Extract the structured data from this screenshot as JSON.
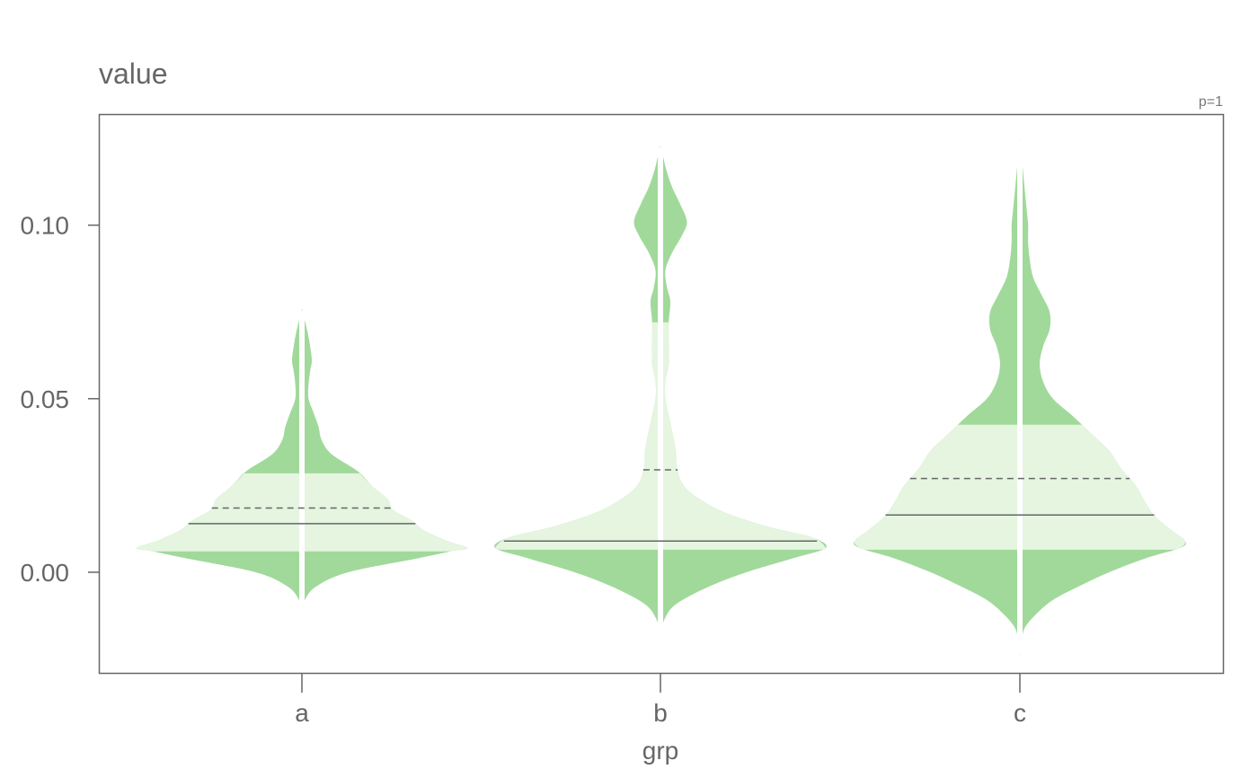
{
  "chart_data": {
    "type": "violin",
    "title": "",
    "ylabel": "value",
    "xlabel": "grp",
    "annotation": "p=1",
    "ylim": [
      -0.029,
      0.132
    ],
    "yticks": [
      0.0,
      0.05,
      0.1
    ],
    "ytick_labels": [
      "0.00",
      "0.05",
      "0.10"
    ],
    "categories": [
      "a",
      "b",
      "c"
    ],
    "grid": false,
    "colors": {
      "outer": "#a1d99b",
      "inner": "#e5f5e0",
      "spine": "#ffffff",
      "median": "#666666",
      "frame": "#666666"
    },
    "groups": [
      {
        "name": "a",
        "q1": 0.006,
        "q3": 0.0285,
        "median": 0.014,
        "mean": 0.0185,
        "min": -0.016,
        "max": 0.076,
        "density": [
          [
            -0.016,
            0.0
          ],
          [
            -0.012,
            0.004
          ],
          [
            -0.008,
            0.018
          ],
          [
            -0.004,
            0.09
          ],
          [
            0.0,
            0.28
          ],
          [
            0.004,
            0.7
          ],
          [
            0.006,
            0.9
          ],
          [
            0.007,
            1.0
          ],
          [
            0.009,
            0.88
          ],
          [
            0.012,
            0.74
          ],
          [
            0.015,
            0.66
          ],
          [
            0.018,
            0.55
          ],
          [
            0.021,
            0.52
          ],
          [
            0.025,
            0.42
          ],
          [
            0.029,
            0.34
          ],
          [
            0.034,
            0.18
          ],
          [
            0.038,
            0.12
          ],
          [
            0.042,
            0.1
          ],
          [
            0.046,
            0.07
          ],
          [
            0.05,
            0.04
          ],
          [
            0.054,
            0.04
          ],
          [
            0.058,
            0.05
          ],
          [
            0.061,
            0.06
          ],
          [
            0.065,
            0.05
          ],
          [
            0.069,
            0.035
          ],
          [
            0.073,
            0.015
          ],
          [
            0.076,
            0.0
          ]
        ]
      },
      {
        "name": "b",
        "q1": 0.0065,
        "q3": 0.072,
        "median": 0.009,
        "mean": 0.0295,
        "min": -0.021,
        "max": 0.123,
        "density": [
          [
            -0.021,
            0.0
          ],
          [
            -0.017,
            0.006
          ],
          [
            -0.013,
            0.03
          ],
          [
            -0.009,
            0.1
          ],
          [
            -0.004,
            0.3
          ],
          [
            0.0,
            0.52
          ],
          [
            0.004,
            0.8
          ],
          [
            0.007,
            1.0
          ],
          [
            0.01,
            0.92
          ],
          [
            0.013,
            0.66
          ],
          [
            0.017,
            0.4
          ],
          [
            0.021,
            0.24
          ],
          [
            0.025,
            0.14
          ],
          [
            0.03,
            0.1
          ],
          [
            0.036,
            0.09
          ],
          [
            0.043,
            0.06
          ],
          [
            0.05,
            0.03
          ],
          [
            0.055,
            0.03
          ],
          [
            0.06,
            0.05
          ],
          [
            0.066,
            0.05
          ],
          [
            0.072,
            0.05
          ],
          [
            0.078,
            0.06
          ],
          [
            0.082,
            0.04
          ],
          [
            0.087,
            0.03
          ],
          [
            0.092,
            0.07
          ],
          [
            0.097,
            0.13
          ],
          [
            0.101,
            0.16
          ],
          [
            0.106,
            0.12
          ],
          [
            0.111,
            0.07
          ],
          [
            0.116,
            0.035
          ],
          [
            0.12,
            0.015
          ],
          [
            0.123,
            0.0
          ]
        ]
      },
      {
        "name": "c",
        "q1": 0.0065,
        "q3": 0.0425,
        "median": 0.0165,
        "mean": 0.027,
        "min": -0.024,
        "max": 0.125,
        "density": [
          [
            -0.024,
            0.0
          ],
          [
            -0.02,
            0.01
          ],
          [
            -0.016,
            0.03
          ],
          [
            -0.012,
            0.1
          ],
          [
            -0.008,
            0.2
          ],
          [
            -0.004,
            0.36
          ],
          [
            0.0,
            0.54
          ],
          [
            0.004,
            0.76
          ],
          [
            0.007,
            0.97
          ],
          [
            0.009,
            1.0
          ],
          [
            0.012,
            0.92
          ],
          [
            0.016,
            0.82
          ],
          [
            0.02,
            0.76
          ],
          [
            0.025,
            0.7
          ],
          [
            0.03,
            0.61
          ],
          [
            0.035,
            0.54
          ],
          [
            0.04,
            0.43
          ],
          [
            0.045,
            0.32
          ],
          [
            0.05,
            0.2
          ],
          [
            0.055,
            0.14
          ],
          [
            0.06,
            0.12
          ],
          [
            0.065,
            0.14
          ],
          [
            0.07,
            0.18
          ],
          [
            0.075,
            0.18
          ],
          [
            0.08,
            0.13
          ],
          [
            0.085,
            0.08
          ],
          [
            0.09,
            0.06
          ],
          [
            0.095,
            0.05
          ],
          [
            0.1,
            0.05
          ],
          [
            0.105,
            0.04
          ],
          [
            0.11,
            0.03
          ],
          [
            0.115,
            0.02
          ],
          [
            0.12,
            0.01
          ],
          [
            0.125,
            0.0
          ]
        ]
      }
    ]
  }
}
